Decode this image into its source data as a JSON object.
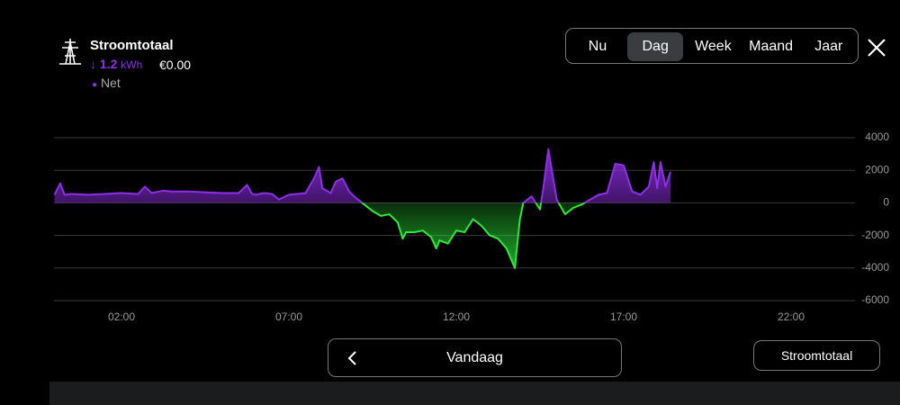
{
  "header": {
    "title": "Stroomtotaal",
    "arrow": "↓",
    "amount": "1.2",
    "unit": "kWh",
    "cost": "€0.00"
  },
  "tabs": [
    "Nu",
    "Dag",
    "Week",
    "Maand",
    "Jaar"
  ],
  "footer": {
    "period": "Vandaag",
    "selector": "Stroomtotaal"
  },
  "chart_data": {
    "type": "area",
    "x": [
      0,
      0.17,
      0.3,
      0.5,
      1,
      1.5,
      2,
      2.5,
      2.7,
      2.9,
      3.25,
      3.5,
      4,
      4.5,
      5,
      5.5,
      5.75,
      5.9,
      6,
      6.25,
      6.5,
      6.7,
      7,
      7.25,
      7.5,
      7.75,
      7.9,
      8,
      8.25,
      8.4,
      8.6,
      8.8,
      9,
      9.25,
      9.5,
      9.75,
      10,
      10.25,
      10.4,
      10.5,
      10.75,
      11,
      11.25,
      11.4,
      11.5,
      11.75,
      12,
      12.25,
      12.5,
      12.75,
      13,
      13.25,
      13.5,
      13.75,
      13.9,
      14,
      14.25,
      14.5,
      14.6,
      14.75,
      15,
      15.25,
      15.5,
      15.75,
      16,
      16.25,
      16.5,
      16.75,
      17,
      17.25,
      17.5,
      17.75,
      17.9,
      18,
      18.1,
      18.25,
      18.4
    ],
    "series": [
      {
        "name": "Net",
        "color": "#8e2ee6",
        "values": [
          500,
          1200,
          500,
          550,
          500,
          550,
          600,
          550,
          1000,
          600,
          750,
          700,
          700,
          650,
          600,
          600,
          1100,
          550,
          500,
          600,
          550,
          200,
          500,
          550,
          600,
          1500,
          2200,
          900,
          600,
          1300,
          1500,
          700,
          300,
          -100,
          -500,
          -800,
          -700,
          -1200,
          -2200,
          -1800,
          -1800,
          -1700,
          -2100,
          -2800,
          -2300,
          -2500,
          -1700,
          -1800,
          -1000,
          -1400,
          -2000,
          -2200,
          -2800,
          -4000,
          -1000,
          0,
          400,
          -400,
          900,
          3300,
          200,
          -700,
          -300,
          -100,
          200,
          500,
          600,
          2400,
          2300,
          700,
          500,
          1000,
          2500,
          900,
          2500,
          1000,
          1900
        ]
      }
    ],
    "xlim": [
      0,
      24
    ],
    "xticks": [
      {
        "value": 2,
        "label": "02:00"
      },
      {
        "value": 7,
        "label": "07:00"
      },
      {
        "value": 12,
        "label": "12:00"
      },
      {
        "value": 17,
        "label": "17:00"
      },
      {
        "value": 22,
        "label": "22:00"
      }
    ],
    "ylim": [
      -6000,
      4000
    ],
    "yticks": [
      4000,
      2000,
      0,
      -2000,
      -4000,
      -6000
    ],
    "grid": true,
    "negative_color": "#2ee83a"
  }
}
